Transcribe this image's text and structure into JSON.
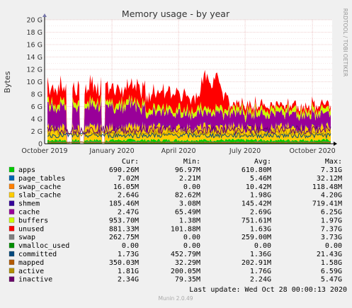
{
  "chart_data": {
    "type": "area",
    "title": "Memory usage - by year",
    "ylabel": "Bytes",
    "side_label": "RRDTOOL / TOBI OETIKER",
    "ylim": [
      0,
      20
    ],
    "y_unit": "G",
    "y_ticks": [
      "0",
      "2 G",
      "4 G",
      "6 G",
      "8 G",
      "10 G",
      "12 G",
      "14 G",
      "16 G",
      "18 G",
      "20 G"
    ],
    "y_tick_values": [
      0,
      2,
      4,
      6,
      8,
      10,
      12,
      14,
      16,
      18,
      20
    ],
    "x_range": [
      "2019-10-01",
      "2020-10-28"
    ],
    "x_ticks": [
      {
        "label": "October 2019",
        "date": "2019-10-01"
      },
      {
        "label": "January 2020",
        "date": "2020-01-01"
      },
      {
        "label": "April 2020",
        "date": "2020-04-01"
      },
      {
        "label": "July 2020",
        "date": "2020-07-01"
      },
      {
        "label": "October 2020",
        "date": "2020-10-01"
      }
    ],
    "grid": true,
    "table_headers": [
      "Cur:",
      "Min:",
      "Avg:",
      "Max:"
    ],
    "series": [
      {
        "name": "apps",
        "color": "#00cc00",
        "cur": "690.26M",
        "min": "96.97M",
        "avg": "610.80M",
        "max": "7.31G"
      },
      {
        "name": "page_tables",
        "color": "#0066b3",
        "cur": "7.02M",
        "min": "2.21M",
        "avg": "5.46M",
        "max": "32.12M"
      },
      {
        "name": "swap_cache",
        "color": "#ff8000",
        "cur": "16.05M",
        "min": "0.00",
        "avg": "10.42M",
        "max": "118.48M"
      },
      {
        "name": "slab_cache",
        "color": "#ffcc00",
        "cur": "2.64G",
        "min": "82.62M",
        "avg": "1.98G",
        "max": "4.20G"
      },
      {
        "name": "shmem",
        "color": "#330099",
        "cur": "185.46M",
        "min": "3.08M",
        "avg": "145.42M",
        "max": "719.41M"
      },
      {
        "name": "cache",
        "color": "#990099",
        "cur": "2.47G",
        "min": "65.49M",
        "avg": "2.69G",
        "max": "6.25G"
      },
      {
        "name": "buffers",
        "color": "#ccff00",
        "cur": "953.70M",
        "min": "1.38M",
        "avg": "751.61M",
        "max": "1.97G"
      },
      {
        "name": "unused",
        "color": "#ff0000",
        "cur": "881.33M",
        "min": "101.88M",
        "avg": "1.63G",
        "max": "7.37G"
      },
      {
        "name": "swap",
        "color": "#808080",
        "cur": "262.75M",
        "min": "0.00",
        "avg": "259.00M",
        "max": "3.73G"
      },
      {
        "name": "vmalloc_used",
        "color": "#008f00",
        "cur": "0.00",
        "min": "0.00",
        "avg": "0.00",
        "max": "0.00"
      },
      {
        "name": "committed",
        "color": "#00487d",
        "cur": "1.73G",
        "min": "452.79M",
        "avg": "1.36G",
        "max": "21.43G"
      },
      {
        "name": "mapped",
        "color": "#b35a00",
        "cur": "350.03M",
        "min": "32.29M",
        "avg": "202.91M",
        "max": "1.58G"
      },
      {
        "name": "active",
        "color": "#b38f00",
        "cur": "1.81G",
        "min": "200.05M",
        "avg": "1.76G",
        "max": "6.59G"
      },
      {
        "name": "inactive",
        "color": "#6b006b",
        "cur": "2.34G",
        "min": "79.35M",
        "avg": "2.24G",
        "max": "5.47G"
      }
    ]
  },
  "footer": {
    "last_update": "Last update: Wed Oct 28 00:00:13 2020",
    "munin_version": "Munin 2.0.49"
  }
}
